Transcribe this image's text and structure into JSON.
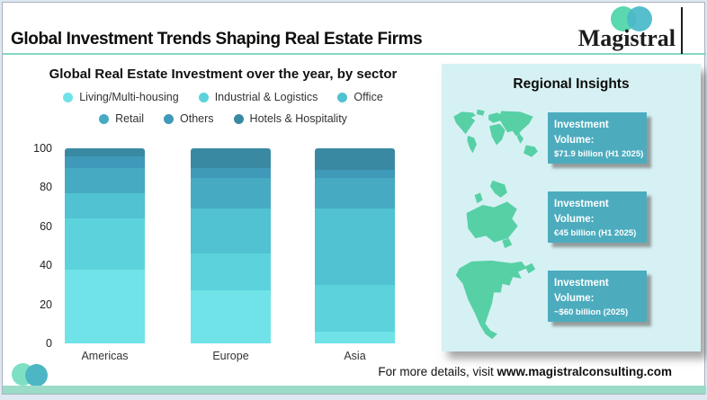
{
  "header": {
    "title": "Global Investment Trends Shaping Real Estate Firms",
    "brand": "Magistral"
  },
  "chart_data": {
    "type": "bar",
    "stacked": true,
    "percent": true,
    "title": "Global Real Estate Investment over the year, by sector",
    "categories": [
      "Americas",
      "Europe",
      "Asia"
    ],
    "series": [
      {
        "name": "Living/Multi-housing",
        "color": "#6fe3e7",
        "values": [
          38,
          27,
          6
        ]
      },
      {
        "name": "Industrial & Logistics",
        "color": "#5cd3dc",
        "values": [
          26,
          19,
          24
        ]
      },
      {
        "name": "Office",
        "color": "#50c2d1",
        "values": [
          13,
          23,
          39
        ]
      },
      {
        "name": "Retail",
        "color": "#47aac3",
        "values": [
          13,
          16,
          16
        ]
      },
      {
        "name": "Others",
        "color": "#3f9ab9",
        "values": [
          6,
          5,
          4
        ]
      },
      {
        "name": "Hotels & Hospitality",
        "color": "#3a89a2",
        "values": [
          4,
          10,
          11
        ]
      }
    ],
    "ylim": [
      0,
      100
    ],
    "yticks": [
      0,
      20,
      40,
      60,
      80,
      100
    ],
    "grid": false,
    "legend_position": "top"
  },
  "insights": {
    "title": "Regional Insights",
    "rows": [
      {
        "map": "world-map",
        "label": "Investment Volume:",
        "value": "$71.9 billion (H1 2025)"
      },
      {
        "map": "europe-map",
        "label": "Investment Volume:",
        "value": "€45 billion (H1 2025)"
      },
      {
        "map": "north-america-map",
        "label": "Investment Volume:",
        "value": "~$60 billion (2025)"
      }
    ]
  },
  "footer": {
    "prefix": "For more details, visit ",
    "site": "www.magistralconsulting.com"
  },
  "colors": {
    "accent_rule": "#82d7c7",
    "bottom_strip": "#9adcc7",
    "panel_bg": "#d6f1f3",
    "insight_box_bg": "#4cacbe",
    "map_green": "#57d0a5",
    "logo_mint": "#5ad8b0",
    "logo_teal": "#49b9c9"
  }
}
